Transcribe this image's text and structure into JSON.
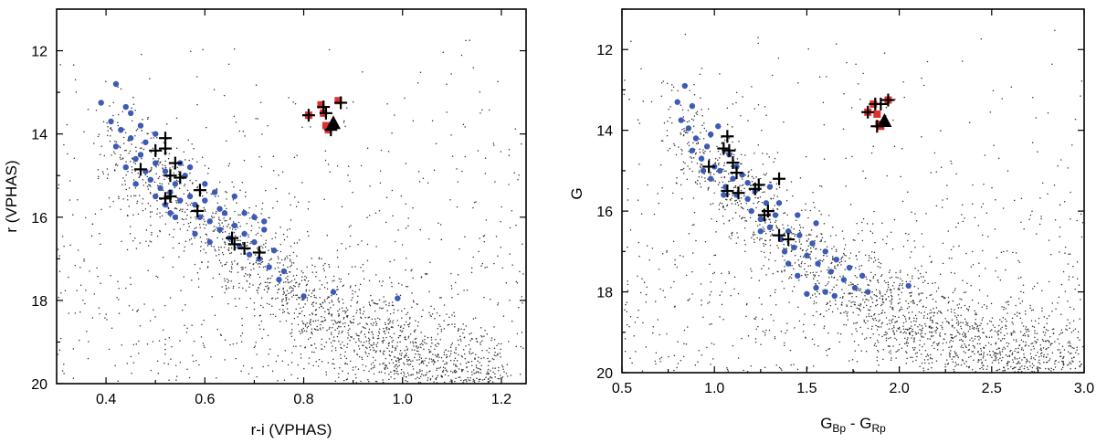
{
  "chart_data": [
    {
      "id": "left",
      "type": "scatter",
      "title": "",
      "xlabel": "r-i (VPHAS)",
      "ylabel": "r (VPHAS)",
      "xlim": [
        0.3,
        1.25
      ],
      "ylim": [
        11.0,
        20.0
      ],
      "y_inverted": true,
      "xticks": [
        0.4,
        0.6,
        0.8,
        1.0,
        1.2
      ],
      "xtick_labels": [
        "0.4",
        "0.6",
        "0.8",
        "1.0",
        "1.2"
      ],
      "yticks": [
        12,
        14,
        16,
        18,
        20
      ],
      "ytick_labels": [
        "12",
        "14",
        "16",
        "18",
        "20"
      ],
      "background_field": {
        "description": "field stars",
        "sequence": [
          [
            0.4,
            13.9
          ],
          [
            0.5,
            15.0
          ],
          [
            0.6,
            15.9
          ],
          [
            0.7,
            16.8
          ],
          [
            0.8,
            17.8
          ],
          [
            0.9,
            18.5
          ],
          [
            1.0,
            19.1
          ],
          [
            1.1,
            19.6
          ],
          [
            1.2,
            19.9
          ]
        ],
        "count": 2600
      },
      "series": [
        {
          "name": "blue members",
          "marker": "circle",
          "color": "#3d5bb5",
          "points": [
            [
              0.39,
              13.25
            ],
            [
              0.42,
              12.8
            ],
            [
              0.44,
              13.35
            ],
            [
              0.41,
              13.7
            ],
            [
              0.43,
              13.9
            ],
            [
              0.45,
              14.1
            ],
            [
              0.42,
              14.3
            ],
            [
              0.46,
              14.6
            ],
            [
              0.44,
              14.8
            ],
            [
              0.47,
              14.5
            ],
            [
              0.48,
              14.9
            ],
            [
              0.5,
              14.7
            ],
            [
              0.49,
              15.1
            ],
            [
              0.51,
              15.3
            ],
            [
              0.52,
              14.9
            ],
            [
              0.53,
              15.4
            ],
            [
              0.54,
              15.2
            ],
            [
              0.55,
              15.6
            ],
            [
              0.56,
              15.0
            ],
            [
              0.57,
              15.5
            ],
            [
              0.58,
              15.7
            ],
            [
              0.59,
              16.0
            ],
            [
              0.6,
              15.6
            ],
            [
              0.61,
              16.1
            ],
            [
              0.62,
              15.4
            ],
            [
              0.63,
              16.3
            ],
            [
              0.64,
              15.9
            ],
            [
              0.65,
              16.5
            ],
            [
              0.66,
              16.2
            ],
            [
              0.67,
              16.7
            ],
            [
              0.68,
              16.4
            ],
            [
              0.69,
              16.9
            ],
            [
              0.7,
              16.6
            ],
            [
              0.71,
              17.0
            ],
            [
              0.72,
              16.3
            ],
            [
              0.73,
              17.2
            ],
            [
              0.74,
              16.8
            ],
            [
              0.75,
              17.5
            ],
            [
              0.76,
              17.3
            ],
            [
              0.8,
              17.9
            ],
            [
              0.86,
              17.8
            ],
            [
              0.99,
              17.95
            ],
            [
              0.48,
              14.2
            ],
            [
              0.5,
              14.0
            ],
            [
              0.52,
              15.7
            ],
            [
              0.55,
              14.7
            ],
            [
              0.57,
              14.8
            ],
            [
              0.6,
              15.2
            ],
            [
              0.63,
              15.8
            ],
            [
              0.66,
              15.5
            ],
            [
              0.68,
              15.9
            ],
            [
              0.7,
              16.0
            ],
            [
              0.72,
              16.1
            ],
            [
              0.53,
              15.9
            ],
            [
              0.58,
              16.4
            ],
            [
              0.61,
              16.6
            ],
            [
              0.46,
              15.2
            ],
            [
              0.5,
              15.5
            ],
            [
              0.54,
              16.0
            ],
            [
              0.45,
              13.5
            ],
            [
              0.47,
              13.8
            ]
          ]
        },
        {
          "name": "red giants",
          "marker": "square",
          "color": "#e0312f",
          "points": [
            [
              0.81,
              13.55
            ],
            [
              0.835,
              13.3
            ],
            [
              0.84,
              13.5
            ],
            [
              0.845,
              13.8
            ],
            [
              0.85,
              13.9
            ],
            [
              0.87,
              13.2
            ]
          ]
        },
        {
          "name": "crosses",
          "marker": "plus",
          "color": "#000000",
          "points": [
            [
              0.52,
              14.1
            ],
            [
              0.5,
              14.4
            ],
            [
              0.52,
              14.35
            ],
            [
              0.54,
              14.7
            ],
            [
              0.53,
              15.0
            ],
            [
              0.55,
              15.05
            ],
            [
              0.47,
              14.85
            ],
            [
              0.53,
              15.5
            ],
            [
              0.52,
              15.55
            ],
            [
              0.59,
              15.35
            ],
            [
              0.585,
              15.85
            ],
            [
              0.655,
              16.5
            ],
            [
              0.66,
              16.65
            ],
            [
              0.68,
              16.75
            ],
            [
              0.71,
              16.85
            ],
            [
              0.81,
              13.55
            ],
            [
              0.84,
              13.35
            ],
            [
              0.845,
              13.5
            ],
            [
              0.875,
              13.25
            ],
            [
              0.855,
              13.9
            ]
          ]
        },
        {
          "name": "triangle",
          "marker": "triangle",
          "color": "#000000",
          "points": [
            [
              0.86,
              13.75
            ]
          ]
        }
      ]
    },
    {
      "id": "right",
      "type": "scatter",
      "title": "",
      "xlabel": "G",
      "xlabel_sub1": "Bp",
      "xlabel_mid": " - G",
      "xlabel_sub2": "Rp",
      "ylabel": "G",
      "xlim": [
        0.5,
        3.0
      ],
      "ylim": [
        11.0,
        20.0
      ],
      "y_inverted": true,
      "xticks": [
        0.5,
        1.0,
        1.5,
        2.0,
        2.5,
        3.0
      ],
      "xtick_labels": [
        "0.5",
        "1.0",
        "1.5",
        "2.0",
        "2.5",
        "3.0"
      ],
      "yticks": [
        12,
        14,
        16,
        18,
        20
      ],
      "ytick_labels": [
        "12",
        "14",
        "16",
        "18",
        "20"
      ],
      "background_field": {
        "description": "field stars",
        "sequence": [
          [
            0.75,
            13.6
          ],
          [
            1.0,
            14.8
          ],
          [
            1.25,
            15.9
          ],
          [
            1.5,
            16.9
          ],
          [
            1.75,
            17.8
          ],
          [
            2.0,
            18.4
          ],
          [
            2.25,
            18.9
          ],
          [
            2.5,
            19.3
          ],
          [
            2.75,
            19.6
          ],
          [
            3.0,
            19.8
          ]
        ],
        "count": 2600
      },
      "series": [
        {
          "name": "blue members",
          "marker": "circle",
          "color": "#3d5bb5",
          "points": [
            [
              0.8,
              13.3
            ],
            [
              0.84,
              12.9
            ],
            [
              0.88,
              13.4
            ],
            [
              0.82,
              13.75
            ],
            [
              0.86,
              13.95
            ],
            [
              0.9,
              14.2
            ],
            [
              0.88,
              14.5
            ],
            [
              0.93,
              14.7
            ],
            [
              0.96,
              14.4
            ],
            [
              1.0,
              14.9
            ],
            [
              0.98,
              15.2
            ],
            [
              1.03,
              15.0
            ],
            [
              1.06,
              15.4
            ],
            [
              1.1,
              15.2
            ],
            [
              1.12,
              15.6
            ],
            [
              1.15,
              15.1
            ],
            [
              1.18,
              15.7
            ],
            [
              1.2,
              16.0
            ],
            [
              1.22,
              15.5
            ],
            [
              1.25,
              16.2
            ],
            [
              1.28,
              15.8
            ],
            [
              1.3,
              16.4
            ],
            [
              1.33,
              16.1
            ],
            [
              1.36,
              16.7
            ],
            [
              1.4,
              16.5
            ],
            [
              1.43,
              16.9
            ],
            [
              1.46,
              16.6
            ],
            [
              1.5,
              17.1
            ],
            [
              1.53,
              16.8
            ],
            [
              1.56,
              17.3
            ],
            [
              1.6,
              17.0
            ],
            [
              1.63,
              17.5
            ],
            [
              1.66,
              17.2
            ],
            [
              1.7,
              17.7
            ],
            [
              1.73,
              17.4
            ],
            [
              1.76,
              17.9
            ],
            [
              1.8,
              17.6
            ],
            [
              1.83,
              18.0
            ],
            [
              1.65,
              18.1
            ],
            [
              1.6,
              18.0
            ],
            [
              1.55,
              17.9
            ],
            [
              1.5,
              18.05
            ],
            [
              1.45,
              17.6
            ],
            [
              1.4,
              17.3
            ],
            [
              2.05,
              17.85
            ],
            [
              1.08,
              14.6
            ],
            [
              1.12,
              14.9
            ],
            [
              1.05,
              15.6
            ],
            [
              1.18,
              15.3
            ],
            [
              1.3,
              15.4
            ],
            [
              1.35,
              15.8
            ],
            [
              1.45,
              16.1
            ],
            [
              1.55,
              16.3
            ],
            [
              0.94,
              15.0
            ],
            [
              0.98,
              14.1
            ],
            [
              1.02,
              13.9
            ],
            [
              1.25,
              16.5
            ],
            [
              1.38,
              17.0
            ]
          ]
        },
        {
          "name": "red giants",
          "marker": "square",
          "color": "#e0312f",
          "points": [
            [
              1.83,
              13.55
            ],
            [
              1.86,
              13.35
            ],
            [
              1.88,
              13.6
            ],
            [
              1.89,
              13.85
            ],
            [
              1.9,
              13.9
            ],
            [
              1.94,
              13.25
            ]
          ]
        },
        {
          "name": "crosses",
          "marker": "plus",
          "color": "#000000",
          "points": [
            [
              1.07,
              14.15
            ],
            [
              1.05,
              14.45
            ],
            [
              1.08,
              14.5
            ],
            [
              1.1,
              14.8
            ],
            [
              1.12,
              15.05
            ],
            [
              0.97,
              14.9
            ],
            [
              1.07,
              15.5
            ],
            [
              1.13,
              15.55
            ],
            [
              1.22,
              15.45
            ],
            [
              1.24,
              15.35
            ],
            [
              1.29,
              16.0
            ],
            [
              1.27,
              16.1
            ],
            [
              1.35,
              15.2
            ],
            [
              1.35,
              16.6
            ],
            [
              1.4,
              16.7
            ],
            [
              1.83,
              13.55
            ],
            [
              1.87,
              13.35
            ],
            [
              1.9,
              13.35
            ],
            [
              1.94,
              13.25
            ],
            [
              1.88,
              13.9
            ]
          ]
        },
        {
          "name": "triangle",
          "marker": "triangle",
          "color": "#000000",
          "points": [
            [
              1.92,
              13.78
            ]
          ]
        }
      ]
    }
  ]
}
